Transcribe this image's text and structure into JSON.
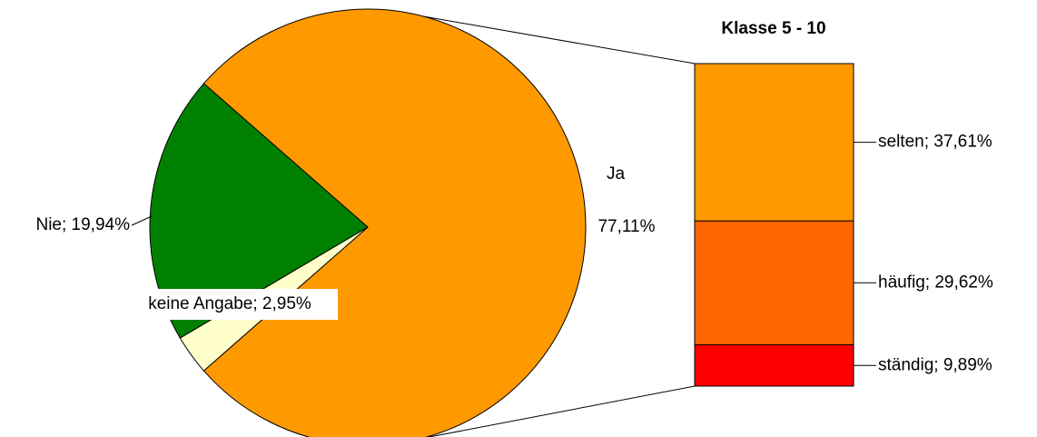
{
  "chart_data": {
    "type": "pie-of-bar",
    "pie": {
      "categories": [
        "Ja",
        "Nie",
        "keine Angabe"
      ],
      "values": [
        77.11,
        19.94,
        2.95
      ],
      "colors": [
        "#ff9900",
        "#008000",
        "#ffffcc"
      ],
      "labels": [
        [
          "Ja",
          "77,11%"
        ],
        [
          "Nie; 19,94%"
        ],
        [
          "keine Angabe; 2,95%"
        ]
      ]
    },
    "bar": {
      "title": "Klasse 5 - 10",
      "categories": [
        "selten",
        "häufig",
        "ständig"
      ],
      "values": [
        37.61,
        29.62,
        9.89
      ],
      "colors": [
        "#ff9900",
        "#ff6600",
        "#ff0000"
      ],
      "labels": [
        "selten; 37,61%",
        "häufig; 29,62%",
        "ständig; 9,89%"
      ]
    }
  }
}
